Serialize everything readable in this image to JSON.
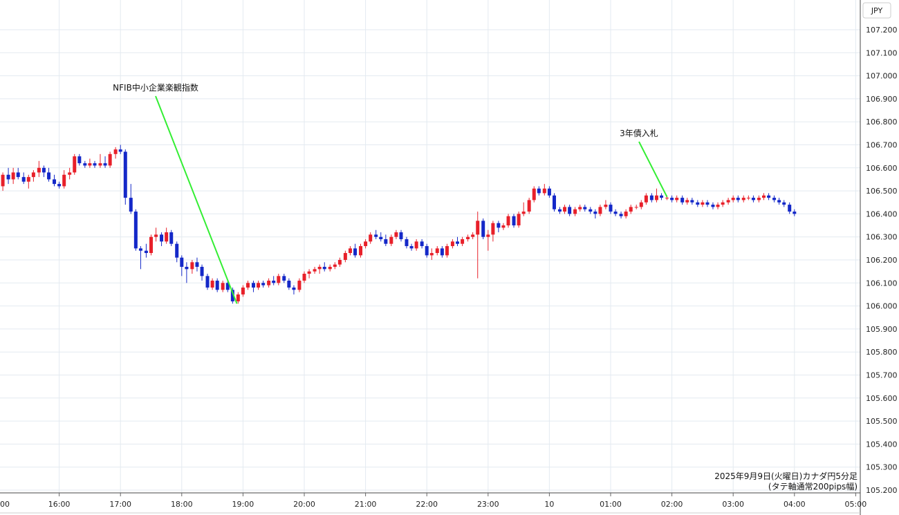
{
  "chart_data": {
    "type": "candlestick",
    "currency_label": "JPY",
    "caption": [
      "2025年9月9日(火曜日)カナダ円5分足",
      "(タテ軸通常200pips幅)"
    ],
    "y_range": [
      105.2,
      107.3
    ],
    "y_ticks": [
      "107.200",
      "107.100",
      "107.000",
      "106.900",
      "106.800",
      "106.700",
      "106.600",
      "106.500",
      "106.400",
      "106.300",
      "106.200",
      "106.100",
      "106.000",
      "105.900",
      "105.800",
      "105.700",
      "105.600",
      "105.500",
      "105.400",
      "105.300",
      "105.200"
    ],
    "x_labels": [
      "00",
      "16:00",
      "17:00",
      "18:00",
      "19:00",
      "20:00",
      "21:00",
      "22:00",
      "23:00",
      "10",
      "01:00",
      "02:00",
      "03:00",
      "04:00",
      "05:00"
    ],
    "x_label_hours": [
      15,
      16,
      17,
      18,
      19,
      20,
      21,
      22,
      23,
      24,
      25,
      26,
      27,
      28,
      29
    ],
    "colors": {
      "up": "#e8202a",
      "down": "#1428c8",
      "grid": "#e3eaf0",
      "annotation_line": "#33ee33"
    },
    "annotations": [
      {
        "text": "NFIB中小企業楽観指数",
        "hour": 18.9
      },
      {
        "text": "3年債入札",
        "hour": 25.92
      }
    ],
    "candles": [
      [
        15.0,
        106.46,
        106.53,
        106.44,
        106.52
      ],
      [
        15.08,
        106.52,
        106.58,
        106.5,
        106.57
      ],
      [
        15.17,
        106.57,
        106.6,
        106.53,
        106.55
      ],
      [
        15.25,
        106.55,
        106.6,
        106.53,
        106.58
      ],
      [
        15.33,
        106.58,
        106.6,
        106.55,
        106.56
      ],
      [
        15.42,
        106.56,
        106.58,
        106.53,
        106.54
      ],
      [
        15.5,
        106.54,
        106.57,
        106.51,
        106.56
      ],
      [
        15.58,
        106.56,
        106.59,
        106.54,
        106.58
      ],
      [
        15.67,
        106.58,
        106.63,
        106.56,
        106.6
      ],
      [
        15.75,
        106.6,
        106.61,
        106.56,
        106.58
      ],
      [
        15.83,
        106.58,
        106.6,
        106.54,
        106.55
      ],
      [
        15.92,
        106.55,
        106.57,
        106.52,
        106.53
      ],
      [
        16.0,
        106.53,
        106.54,
        106.51,
        106.52
      ],
      [
        16.08,
        106.52,
        106.59,
        106.51,
        106.57
      ],
      [
        16.17,
        106.57,
        106.6,
        106.55,
        106.58
      ],
      [
        16.25,
        106.58,
        106.66,
        106.57,
        106.65
      ],
      [
        16.33,
        106.65,
        106.66,
        106.61,
        106.62
      ],
      [
        16.42,
        106.62,
        106.63,
        106.6,
        106.61
      ],
      [
        16.5,
        106.61,
        106.64,
        106.6,
        106.62
      ],
      [
        16.58,
        106.62,
        106.63,
        106.6,
        106.61
      ],
      [
        16.67,
        106.61,
        106.66,
        106.6,
        106.62
      ],
      [
        16.75,
        106.62,
        106.65,
        106.6,
        106.61
      ],
      [
        16.83,
        106.61,
        106.67,
        106.6,
        106.66
      ],
      [
        16.92,
        106.66,
        106.69,
        106.64,
        106.68
      ],
      [
        17.0,
        106.68,
        106.7,
        106.66,
        106.67
      ],
      [
        17.08,
        106.67,
        106.68,
        106.44,
        106.47
      ],
      [
        17.17,
        106.47,
        106.53,
        106.4,
        106.41
      ],
      [
        17.25,
        106.41,
        106.42,
        106.24,
        106.25
      ],
      [
        17.33,
        106.25,
        106.26,
        106.16,
        106.24
      ],
      [
        17.42,
        106.24,
        106.27,
        106.21,
        106.23
      ],
      [
        17.5,
        106.23,
        106.31,
        106.22,
        106.3
      ],
      [
        17.58,
        106.3,
        106.34,
        106.28,
        106.31
      ],
      [
        17.67,
        106.31,
        106.32,
        106.26,
        106.28
      ],
      [
        17.75,
        106.28,
        106.34,
        106.27,
        106.32
      ],
      [
        17.83,
        106.32,
        106.33,
        106.26,
        106.27
      ],
      [
        17.92,
        106.27,
        106.28,
        106.19,
        106.21
      ],
      [
        18.0,
        106.21,
        106.22,
        106.13,
        106.17
      ],
      [
        18.08,
        106.17,
        106.19,
        106.1,
        106.16
      ],
      [
        18.17,
        106.16,
        106.2,
        106.14,
        106.19
      ],
      [
        18.25,
        106.19,
        106.21,
        106.15,
        106.17
      ],
      [
        18.33,
        106.17,
        106.18,
        106.11,
        106.13
      ],
      [
        18.42,
        106.13,
        106.14,
        106.07,
        106.08
      ],
      [
        18.5,
        106.08,
        106.12,
        106.07,
        106.11
      ],
      [
        18.58,
        106.11,
        106.12,
        106.06,
        106.07
      ],
      [
        18.67,
        106.07,
        106.11,
        106.06,
        106.1
      ],
      [
        18.75,
        106.1,
        106.11,
        106.06,
        106.07
      ],
      [
        18.83,
        106.07,
        106.08,
        106.01,
        106.02
      ],
      [
        18.92,
        106.02,
        106.06,
        106.01,
        106.05
      ],
      [
        19.0,
        106.05,
        106.09,
        106.04,
        106.08
      ],
      [
        19.08,
        106.08,
        106.11,
        106.07,
        106.1
      ],
      [
        19.17,
        106.1,
        106.11,
        106.06,
        106.08
      ],
      [
        19.25,
        106.08,
        106.11,
        106.07,
        106.1
      ],
      [
        19.33,
        106.1,
        106.11,
        106.08,
        106.09
      ],
      [
        19.42,
        106.09,
        106.12,
        106.08,
        106.11
      ],
      [
        19.5,
        106.11,
        106.13,
        106.09,
        106.1
      ],
      [
        19.58,
        106.1,
        106.14,
        106.09,
        106.13
      ],
      [
        19.67,
        106.13,
        106.14,
        106.1,
        106.11
      ],
      [
        19.75,
        106.11,
        106.12,
        106.07,
        106.08
      ],
      [
        19.83,
        106.08,
        106.09,
        106.05,
        106.07
      ],
      [
        19.92,
        106.07,
        106.12,
        106.06,
        106.11
      ],
      [
        20.0,
        106.11,
        106.15,
        106.1,
        106.14
      ],
      [
        20.08,
        106.14,
        106.16,
        106.12,
        106.15
      ],
      [
        20.17,
        106.15,
        106.17,
        106.14,
        106.16
      ],
      [
        20.25,
        106.16,
        106.18,
        106.14,
        106.17
      ],
      [
        20.33,
        106.17,
        106.19,
        106.15,
        106.16
      ],
      [
        20.42,
        106.16,
        106.18,
        106.15,
        106.17
      ],
      [
        20.5,
        106.17,
        106.19,
        106.16,
        106.18
      ],
      [
        20.58,
        106.18,
        106.21,
        106.17,
        106.2
      ],
      [
        20.67,
        106.2,
        106.24,
        106.19,
        106.23
      ],
      [
        20.75,
        106.23,
        106.26,
        106.22,
        106.25
      ],
      [
        20.83,
        106.25,
        106.27,
        106.21,
        106.22
      ],
      [
        20.92,
        106.22,
        106.27,
        106.21,
        106.26
      ],
      [
        21.0,
        106.26,
        106.29,
        106.25,
        106.28
      ],
      [
        21.08,
        106.28,
        106.32,
        106.27,
        106.31
      ],
      [
        21.17,
        106.31,
        106.33,
        106.29,
        106.3
      ],
      [
        21.25,
        106.3,
        106.32,
        106.28,
        106.29
      ],
      [
        21.33,
        106.29,
        106.31,
        106.26,
        106.27
      ],
      [
        21.42,
        106.27,
        106.31,
        106.26,
        106.3
      ],
      [
        21.5,
        106.3,
        106.33,
        106.29,
        106.32
      ],
      [
        21.58,
        106.32,
        106.33,
        106.28,
        106.29
      ],
      [
        21.67,
        106.29,
        106.3,
        106.25,
        106.26
      ],
      [
        21.75,
        106.26,
        106.27,
        106.24,
        106.25
      ],
      [
        21.83,
        106.25,
        106.29,
        106.24,
        106.28
      ],
      [
        21.92,
        106.28,
        106.29,
        106.25,
        106.26
      ],
      [
        22.0,
        106.26,
        106.27,
        106.21,
        106.22
      ],
      [
        22.08,
        106.22,
        106.25,
        106.2,
        106.23
      ],
      [
        22.17,
        106.23,
        106.26,
        106.22,
        106.25
      ],
      [
        22.25,
        106.25,
        106.26,
        106.21,
        106.22
      ],
      [
        22.33,
        106.22,
        106.27,
        106.21,
        106.26
      ],
      [
        22.42,
        106.26,
        106.29,
        106.25,
        106.28
      ],
      [
        22.5,
        106.28,
        106.3,
        106.26,
        106.27
      ],
      [
        22.58,
        106.27,
        106.3,
        106.26,
        106.29
      ],
      [
        22.67,
        106.29,
        106.31,
        106.28,
        106.3
      ],
      [
        22.75,
        106.3,
        106.32,
        106.29,
        106.31
      ],
      [
        22.83,
        106.31,
        106.41,
        106.12,
        106.37
      ],
      [
        22.92,
        106.37,
        106.38,
        106.29,
        106.3
      ],
      [
        23.0,
        106.3,
        106.33,
        106.24,
        106.31
      ],
      [
        23.08,
        106.31,
        106.37,
        106.28,
        106.36
      ],
      [
        23.17,
        106.36,
        106.37,
        106.32,
        106.34
      ],
      [
        23.25,
        106.34,
        106.36,
        106.33,
        106.35
      ],
      [
        23.33,
        106.35,
        106.4,
        106.34,
        106.39
      ],
      [
        23.42,
        106.39,
        106.4,
        106.34,
        106.35
      ],
      [
        23.5,
        106.35,
        106.41,
        106.34,
        106.4
      ],
      [
        23.58,
        106.4,
        106.45,
        106.39,
        106.41
      ],
      [
        23.67,
        106.41,
        106.47,
        106.4,
        106.46
      ],
      [
        23.75,
        106.46,
        106.52,
        106.45,
        106.51
      ],
      [
        23.83,
        106.51,
        106.52,
        106.48,
        106.49
      ],
      [
        23.92,
        106.49,
        106.53,
        106.48,
        106.51
      ],
      [
        24.0,
        106.51,
        106.52,
        106.47,
        106.48
      ],
      [
        24.08,
        106.48,
        106.49,
        106.41,
        106.42
      ],
      [
        24.17,
        106.42,
        106.43,
        106.4,
        106.41
      ],
      [
        24.25,
        106.41,
        106.44,
        106.4,
        106.43
      ],
      [
        24.33,
        106.43,
        106.44,
        106.39,
        106.4
      ],
      [
        24.42,
        106.4,
        106.43,
        106.39,
        106.42
      ],
      [
        24.5,
        106.42,
        106.44,
        106.41,
        106.43
      ],
      [
        24.58,
        106.43,
        106.44,
        106.41,
        106.42
      ],
      [
        24.67,
        106.42,
        106.43,
        106.4,
        106.41
      ],
      [
        24.75,
        106.41,
        106.42,
        106.38,
        106.4
      ],
      [
        24.83,
        106.4,
        106.44,
        106.39,
        106.43
      ],
      [
        24.92,
        106.43,
        106.46,
        106.42,
        106.44
      ],
      [
        25.0,
        106.44,
        106.45,
        106.4,
        106.41
      ],
      [
        25.08,
        106.41,
        106.42,
        106.39,
        106.4
      ],
      [
        25.17,
        106.4,
        106.41,
        106.38,
        106.39
      ],
      [
        25.25,
        106.39,
        106.42,
        106.38,
        106.41
      ],
      [
        25.33,
        106.41,
        106.44,
        106.4,
        106.43
      ],
      [
        25.42,
        106.43,
        106.44,
        106.42,
        106.43
      ],
      [
        25.5,
        106.43,
        106.46,
        106.42,
        106.45
      ],
      [
        25.58,
        106.45,
        106.49,
        106.44,
        106.48
      ],
      [
        25.67,
        106.48,
        106.49,
        106.45,
        106.46
      ],
      [
        25.75,
        106.46,
        106.51,
        106.45,
        106.48
      ],
      [
        25.83,
        106.48,
        106.49,
        106.46,
        106.47
      ],
      [
        25.92,
        106.47,
        106.48,
        106.46,
        106.47
      ],
      [
        26.0,
        106.47,
        106.48,
        106.45,
        106.46
      ],
      [
        26.08,
        106.46,
        106.48,
        106.45,
        106.47
      ],
      [
        26.17,
        106.47,
        106.48,
        106.44,
        106.45
      ],
      [
        26.25,
        106.45,
        106.47,
        106.44,
        106.46
      ],
      [
        26.33,
        106.46,
        106.47,
        106.44,
        106.45
      ],
      [
        26.42,
        106.45,
        106.46,
        106.43,
        106.44
      ],
      [
        26.5,
        106.44,
        106.46,
        106.43,
        106.45
      ],
      [
        26.58,
        106.45,
        106.46,
        106.43,
        106.44
      ],
      [
        26.67,
        106.44,
        106.45,
        106.42,
        106.43
      ],
      [
        26.75,
        106.43,
        106.45,
        106.42,
        106.44
      ],
      [
        26.83,
        106.44,
        106.46,
        106.43,
        106.45
      ],
      [
        26.92,
        106.45,
        106.47,
        106.44,
        106.46
      ],
      [
        27.0,
        106.46,
        106.48,
        106.45,
        106.47
      ],
      [
        27.08,
        106.47,
        106.48,
        106.45,
        106.46
      ],
      [
        27.17,
        106.46,
        106.48,
        106.45,
        106.47
      ],
      [
        27.25,
        106.47,
        106.48,
        106.46,
        106.47
      ],
      [
        27.33,
        106.47,
        106.48,
        106.45,
        106.46
      ],
      [
        27.42,
        106.46,
        106.48,
        106.45,
        106.47
      ],
      [
        27.5,
        106.47,
        106.49,
        106.46,
        106.48
      ],
      [
        27.58,
        106.48,
        106.49,
        106.46,
        106.47
      ],
      [
        27.67,
        106.47,
        106.48,
        106.45,
        106.46
      ],
      [
        27.75,
        106.46,
        106.47,
        106.44,
        106.45
      ],
      [
        27.83,
        106.45,
        106.46,
        106.43,
        106.44
      ],
      [
        27.92,
        106.44,
        106.45,
        106.4,
        106.41
      ],
      [
        28.0,
        106.41,
        106.42,
        106.39,
        106.4
      ]
    ]
  }
}
